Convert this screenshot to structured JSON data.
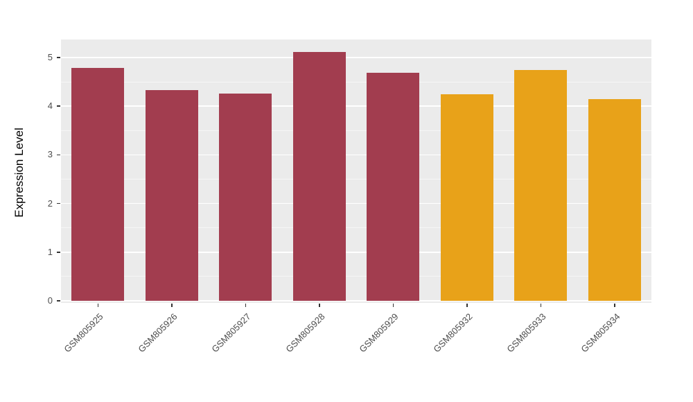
{
  "chart_data": {
    "type": "bar",
    "title": "",
    "categories": [
      "GSM805925",
      "GSM805926",
      "GSM805927",
      "GSM805928",
      "GSM805929",
      "GSM805932",
      "GSM805933",
      "GSM805934"
    ],
    "values": [
      4.79,
      4.33,
      4.26,
      5.11,
      4.68,
      4.24,
      4.75,
      4.15
    ],
    "groups": [
      "A",
      "A",
      "A",
      "A",
      "A",
      "B",
      "B",
      "B"
    ],
    "group_colors": {
      "A": "#A23D4F",
      "B": "#E8A219"
    },
    "xlabel": "",
    "ylabel": "Expression Level",
    "yticks": [
      0,
      1,
      2,
      3,
      4,
      5
    ],
    "yticks_minor": [
      0.5,
      1.5,
      2.5,
      3.5,
      4.5
    ],
    "ylim": [
      0,
      5.4
    ],
    "grid": true,
    "legend": "none",
    "panel_bg": "#EBEBEB",
    "figure_bg": "#FFFFFF",
    "gridline_color": "#FFFFFF",
    "tick_color": "#333333",
    "tick_label_color": "#4D4D4D"
  }
}
